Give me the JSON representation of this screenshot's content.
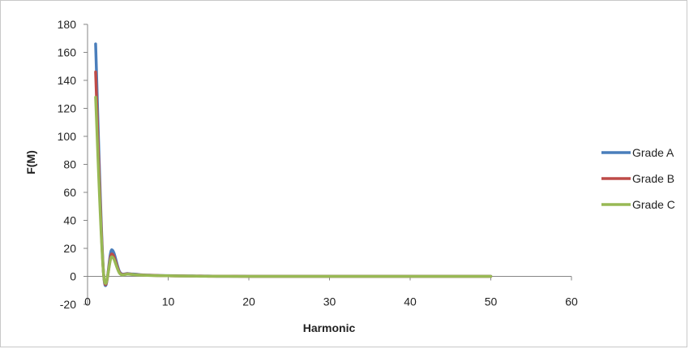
{
  "chart_data": {
    "type": "line",
    "title": "",
    "xlabel": "Harmonic",
    "ylabel": "F(M)",
    "xlim": [
      0,
      60
    ],
    "ylim": [
      -20,
      180
    ],
    "xticks": [
      0,
      10,
      20,
      30,
      40,
      50,
      60
    ],
    "yticks": [
      -20,
      0,
      20,
      40,
      60,
      80,
      100,
      120,
      140,
      160,
      180
    ],
    "grid": false,
    "legend_position": "right",
    "x": [
      1,
      2,
      3,
      4,
      5,
      6,
      7,
      8,
      9,
      10,
      11,
      12,
      13,
      14,
      15,
      16,
      17,
      18,
      19,
      20,
      21,
      22,
      23,
      24,
      25,
      26,
      27,
      28,
      29,
      30,
      31,
      32,
      33,
      34,
      35,
      36,
      37,
      38,
      39,
      40,
      41,
      42,
      43,
      44,
      45,
      46,
      47,
      48,
      49,
      50
    ],
    "series": [
      {
        "name": "Grade A",
        "color": "#4a7ebb",
        "values": [
          166,
          1,
          19,
          3,
          2,
          1.5,
          1,
          0.8,
          0.6,
          0.5,
          0.4,
          0.3,
          0.3,
          0.2,
          0.2,
          0.1,
          0.1,
          0.1,
          0.1,
          0,
          0,
          0,
          0,
          0,
          0,
          0,
          0,
          0,
          0,
          0,
          0,
          0,
          0,
          0,
          0,
          0,
          0,
          0,
          0,
          0,
          0,
          0,
          0,
          0,
          0,
          0,
          0,
          0,
          0,
          0
        ]
      },
      {
        "name": "Grade B",
        "color": "#be4b48",
        "values": [
          146,
          1,
          16,
          2.5,
          1.8,
          1.2,
          0.9,
          0.7,
          0.5,
          0.4,
          0.3,
          0.3,
          0.2,
          0.2,
          0.1,
          0.1,
          0.1,
          0.1,
          0,
          0,
          0,
          0,
          0,
          0,
          0,
          0,
          0,
          0,
          0,
          0,
          0,
          0,
          0,
          0,
          0,
          0,
          0,
          0,
          0,
          0,
          0,
          0,
          0,
          0,
          0,
          0,
          0,
          0,
          0,
          0
        ]
      },
      {
        "name": "Grade C",
        "color": "#98b954",
        "values": [
          128,
          1,
          14,
          2,
          1.6,
          1.1,
          0.8,
          0.6,
          0.5,
          0.4,
          0.3,
          0.2,
          0.2,
          0.1,
          0.1,
          0.1,
          0.1,
          0,
          0,
          0,
          0,
          0,
          0,
          0,
          0,
          0,
          0,
          0,
          0,
          0,
          0,
          0,
          0,
          0,
          0,
          0,
          0,
          0,
          0,
          0,
          0,
          0,
          0,
          0,
          0,
          0,
          0,
          0,
          0,
          0
        ]
      }
    ]
  }
}
